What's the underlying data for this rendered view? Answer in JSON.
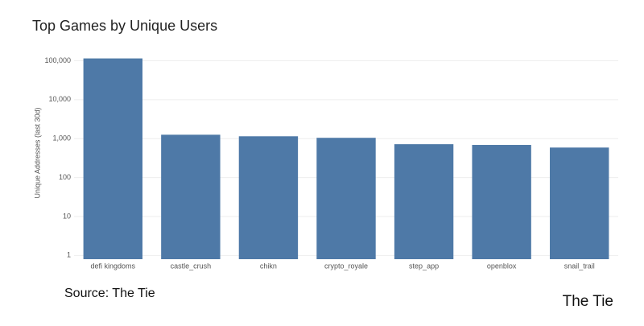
{
  "chart_data": {
    "type": "bar",
    "title": "Top Games by Unique Users",
    "y_label": "Unique Addresses (last 30d)",
    "categories": [
      "defi kingdoms",
      "castle_crush",
      "chikn",
      "crypto_royale",
      "step_app",
      "openblox",
      "snail_trail"
    ],
    "values": [
      115000,
      1260,
      1150,
      1050,
      720,
      690,
      590
    ],
    "color": "#4e79a7",
    "log_scale": true,
    "ylim": [
      0.8,
      130000
    ],
    "yticks": [
      1,
      10,
      100,
      {
        "value": 1000,
        "label": "1,000"
      },
      {
        "value": 10000,
        "label": "10,000"
      },
      {
        "value": 100000,
        "label": "100,000"
      }
    ],
    "grid": true
  },
  "source": "Source: The Tie",
  "logo": "The Tie"
}
